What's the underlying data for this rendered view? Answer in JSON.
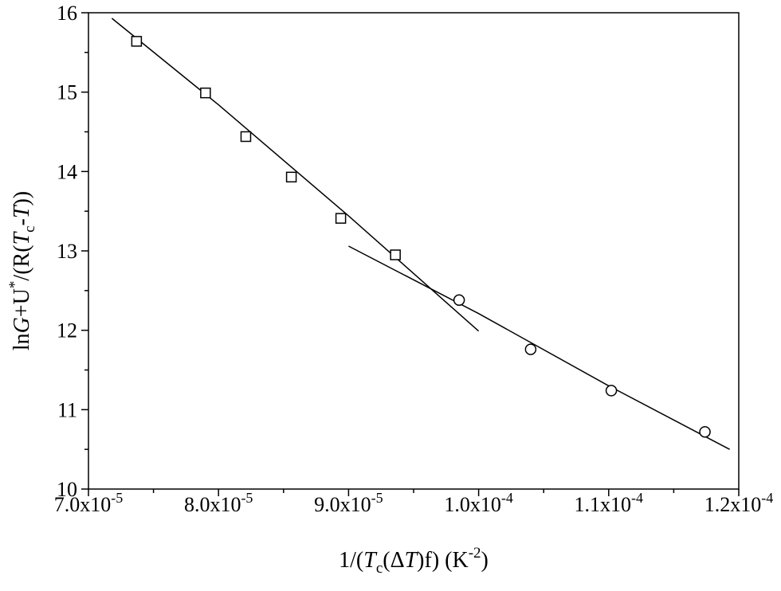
{
  "chart_data": {
    "type": "scatter",
    "title": "",
    "xlim": [
      7e-05,
      0.00012
    ],
    "ylim": [
      10,
      16
    ],
    "x_ticks": [
      7e-05,
      8e-05,
      9e-05,
      0.0001,
      0.00011,
      0.00012
    ],
    "x_tick_labels": [
      {
        "mantissa": "7.0x10",
        "exponent": "-5"
      },
      {
        "mantissa": "8.0x10",
        "exponent": "-5"
      },
      {
        "mantissa": "9.0x10",
        "exponent": "-5"
      },
      {
        "mantissa": "1.0x10",
        "exponent": "-4"
      },
      {
        "mantissa": "1.1x10",
        "exponent": "-4"
      },
      {
        "mantissa": "1.2x10",
        "exponent": "-4"
      }
    ],
    "y_ticks": [
      10,
      11,
      12,
      13,
      14,
      15,
      16
    ],
    "y_tick_labels": [
      "10",
      "11",
      "12",
      "13",
      "14",
      "15",
      "16"
    ],
    "xlabel": {
      "p1": "1/(",
      "T": "T",
      "sub": "c",
      "p2": "(Δ",
      "T2": "T",
      "p3": ")f) (K",
      "sup": "-2",
      "p4": ")"
    },
    "ylabel": {
      "ln": "ln",
      "G": "G",
      "plus": "+U",
      "star": "*",
      "p1": "/(R(",
      "T": "T",
      "sub": "c",
      "dash": "-",
      "T2": "T",
      "p2": "))"
    },
    "grid": false,
    "series": [
      {
        "marker": "square",
        "x": [
          7.37e-05,
          7.9e-05,
          8.21e-05,
          8.56e-05,
          8.94e-05,
          9.36e-05
        ],
        "y": [
          15.64,
          14.99,
          14.44,
          13.93,
          13.41,
          12.95
        ]
      },
      {
        "marker": "circle",
        "x": [
          9.85e-05,
          0.000104,
          0.0001102,
          0.0001174
        ],
        "y": [
          12.38,
          11.76,
          11.24,
          10.72
        ]
      }
    ],
    "fit_lines": [
      {
        "x": [
          7.18e-05,
          8e-05,
          9e-05,
          0.0001
        ],
        "y": [
          15.93,
          14.84,
          13.44,
          11.99
        ]
      },
      {
        "x": [
          9e-05,
          0.0001,
          0.00011,
          0.0001193
        ],
        "y": [
          13.06,
          12.21,
          11.3,
          10.5
        ]
      }
    ]
  }
}
